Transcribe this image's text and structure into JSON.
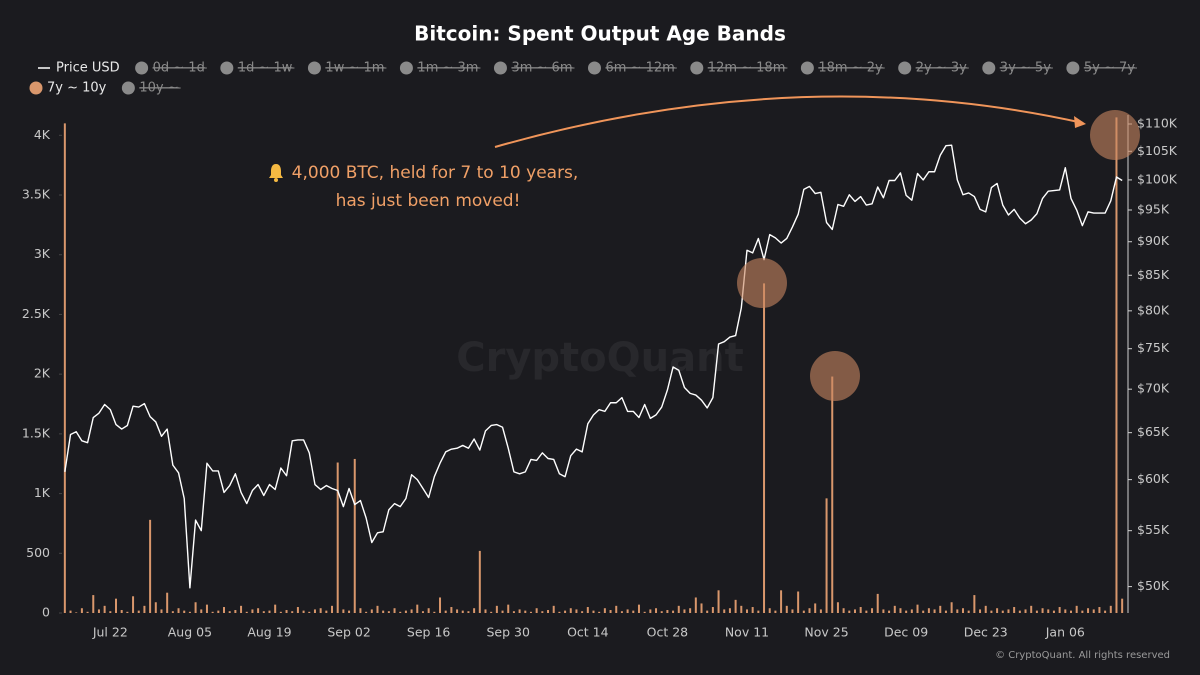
{
  "chart_data": {
    "type": "combo",
    "title": "Bitcoin: Spent Output Age Bands",
    "categories": [
      null,
      null,
      null,
      null,
      null,
      null,
      null,
      null,
      "Jul 22",
      null,
      null,
      null,
      null,
      null,
      null,
      null,
      null,
      null,
      null,
      null,
      null,
      null,
      "Aug 05",
      null,
      null,
      null,
      null,
      null,
      null,
      null,
      null,
      null,
      null,
      null,
      null,
      null,
      "Aug 19",
      null,
      null,
      null,
      null,
      null,
      null,
      null,
      null,
      null,
      null,
      null,
      null,
      null,
      "Sep 02",
      null,
      null,
      null,
      null,
      null,
      null,
      null,
      null,
      null,
      null,
      null,
      null,
      null,
      "Sep 16",
      null,
      null,
      null,
      null,
      null,
      null,
      null,
      null,
      null,
      null,
      null,
      null,
      null,
      "Sep 30",
      null,
      null,
      null,
      null,
      null,
      null,
      null,
      null,
      null,
      null,
      null,
      null,
      null,
      "Oct 14",
      null,
      null,
      null,
      null,
      null,
      null,
      null,
      null,
      null,
      null,
      null,
      null,
      null,
      "Oct 28",
      null,
      null,
      null,
      null,
      null,
      null,
      null,
      null,
      null,
      null,
      null,
      null,
      null,
      "Nov 11",
      null,
      null,
      null,
      null,
      null,
      null,
      null,
      null,
      null,
      null,
      null,
      null,
      null,
      "Nov 25",
      null,
      null,
      null,
      null,
      null,
      null,
      null,
      null,
      null,
      null,
      null,
      null,
      null,
      "Dec 09",
      null,
      null,
      null,
      null,
      null,
      null,
      null,
      null,
      null,
      null,
      null,
      null,
      null,
      "Dec 23",
      null,
      null,
      null,
      null,
      null,
      null,
      null,
      null,
      null,
      null,
      null,
      null,
      null,
      "Jan 06",
      null,
      null,
      null,
      null,
      null,
      null,
      null,
      null,
      null,
      null
    ],
    "series": [
      {
        "name": "Price USD",
        "type": "line",
        "axis": "y2",
        "color": "#ffffff",
        "values": [
          60800,
          64800,
          65100,
          64100,
          63900,
          66700,
          67200,
          68200,
          67600,
          65900,
          65400,
          65800,
          68000,
          67900,
          68300,
          66800,
          66200,
          64600,
          65400,
          61500,
          60700,
          58100,
          49900,
          56000,
          55000,
          61700,
          60900,
          60900,
          58700,
          59400,
          60600,
          58700,
          57600,
          58900,
          59500,
          58400,
          59500,
          59000,
          61200,
          60400,
          64100,
          64200,
          64200,
          62800,
          59500,
          59000,
          59400,
          59100,
          58900,
          57300,
          59100,
          57500,
          57900,
          56200,
          53900,
          54800,
          54900,
          57000,
          57600,
          57300,
          58100,
          60500,
          60000,
          59100,
          58200,
          60300,
          61700,
          62900,
          63200,
          63300,
          63600,
          63300,
          64300,
          63100,
          65200,
          65800,
          65900,
          65600,
          63300,
          60800,
          60600,
          60800,
          62100,
          62000,
          62800,
          62200,
          62100,
          60600,
          60300,
          62500,
          63200,
          62900,
          66000,
          67000,
          67600,
          67400,
          68400,
          68400,
          69000,
          67400,
          67400,
          66700,
          68200,
          66600,
          67000,
          67900,
          69900,
          72700,
          72300,
          70200,
          69500,
          69300,
          68700,
          67800,
          69000,
          75600,
          75900,
          76500,
          76700,
          80400,
          88700,
          88300,
          90500,
          87300,
          91100,
          90600,
          89800,
          90500,
          92300,
          94300,
          98400,
          98900,
          97700,
          97900,
          93000,
          91900,
          95900,
          95600,
          97500,
          96400,
          97200,
          95800,
          96000,
          98800,
          97000,
          99900,
          99900,
          101200,
          97400,
          96600,
          101100,
          100000,
          101400,
          101400,
          104300,
          106000,
          106100,
          100000,
          97500,
          97800,
          97200,
          95100,
          94700,
          98700,
          99400,
          95800,
          94200,
          95100,
          93700,
          92800,
          93400,
          94400,
          96900,
          98100,
          98200,
          98300,
          102100,
          96900,
          95000,
          92500,
          94700,
          94500,
          94500,
          94500,
          96500,
          100500,
          99900
        ]
      },
      {
        "name": "0d ~ 1d",
        "hidden": true
      },
      {
        "name": "1d ~ 1w",
        "hidden": true
      },
      {
        "name": "1w ~ 1m",
        "hidden": true
      },
      {
        "name": "1m ~ 3m",
        "hidden": true
      },
      {
        "name": "3m ~ 6m",
        "hidden": true
      },
      {
        "name": "6m ~ 12m",
        "hidden": true
      },
      {
        "name": "12m ~ 18m",
        "hidden": true
      },
      {
        "name": "18m ~ 2y",
        "hidden": true
      },
      {
        "name": "2y ~ 3y",
        "hidden": true
      },
      {
        "name": "3y ~ 5y",
        "hidden": true
      },
      {
        "name": "5y ~ 7y",
        "hidden": true
      },
      {
        "name": "7y ~ 10y",
        "type": "bar",
        "axis": "y",
        "color": "#d9976c",
        "values": [
          4100,
          20,
          5,
          40,
          10,
          150,
          30,
          60,
          15,
          120,
          25,
          10,
          140,
          20,
          60,
          780,
          90,
          30,
          170,
          15,
          40,
          20,
          10,
          90,
          30,
          70,
          10,
          20,
          50,
          15,
          25,
          60,
          10,
          30,
          40,
          15,
          20,
          70,
          10,
          25,
          15,
          50,
          20,
          10,
          30,
          40,
          20,
          60,
          1260,
          30,
          20,
          1290,
          40,
          10,
          30,
          60,
          20,
          15,
          40,
          10,
          20,
          30,
          70,
          15,
          40,
          10,
          130,
          20,
          50,
          30,
          20,
          15,
          40,
          520,
          30,
          10,
          60,
          20,
          70,
          15,
          30,
          20,
          10,
          40,
          15,
          25,
          60,
          10,
          20,
          40,
          30,
          15,
          50,
          20,
          10,
          40,
          25,
          60,
          15,
          30,
          20,
          70,
          10,
          30,
          40,
          15,
          25,
          20,
          60,
          30,
          40,
          130,
          80,
          20,
          50,
          190,
          30,
          40,
          110,
          60,
          30,
          50,
          20,
          2760,
          40,
          20,
          190,
          60,
          30,
          180,
          20,
          40,
          80,
          30,
          960,
          1980,
          90,
          40,
          20,
          30,
          50,
          20,
          40,
          160,
          30,
          20,
          60,
          40,
          20,
          30,
          70,
          20,
          40,
          30,
          60,
          20,
          90,
          30,
          40,
          20,
          150,
          30,
          60,
          20,
          40,
          20,
          30,
          50,
          20,
          30,
          60,
          20,
          40,
          30,
          20,
          50,
          30,
          20,
          60,
          20,
          40,
          30,
          50,
          20,
          60,
          4150,
          120
        ]
      },
      {
        "name": "10y ~",
        "hidden": true
      }
    ],
    "ylim": [
      0,
      4170
    ],
    "yticks": [
      0,
      500,
      {
        "value": 1000,
        "label": "1K"
      },
      {
        "value": 1500,
        "label": "1.5K"
      },
      {
        "value": 2000,
        "label": "2K"
      },
      {
        "value": 2500,
        "label": "2.5K"
      },
      {
        "value": 3000,
        "label": "3K"
      },
      {
        "value": 3500,
        "label": "3.5K"
      },
      {
        "value": 4000,
        "label": "4K"
      }
    ],
    "y2lim": [
      47800,
      111700
    ],
    "y2log": true,
    "y2ticks": [
      {
        "value": 50000,
        "label": "$50K"
      },
      {
        "value": 55000,
        "label": "$55K"
      },
      {
        "value": 60000,
        "label": "$60K"
      },
      {
        "value": 65000,
        "label": "$65K"
      },
      {
        "value": 70000,
        "label": "$70K"
      },
      {
        "value": 75000,
        "label": "$75K"
      },
      {
        "value": 80000,
        "label": "$80K"
      },
      {
        "value": 85000,
        "label": "$85K"
      },
      {
        "value": 90000,
        "label": "$90K"
      },
      {
        "value": 95000,
        "label": "$95K"
      },
      {
        "value": 100000,
        "label": "$100K"
      },
      {
        "value": 105000,
        "label": "$105K"
      },
      {
        "value": 110000,
        "label": "$110K"
      }
    ],
    "grid": false,
    "annotation": [
      "4,000 BTC, held for 7 to 10 years,",
      "has just been moved!"
    ],
    "watermark": "CryptoQuant",
    "footer": "© CryptoQuant. All rights reserved"
  }
}
